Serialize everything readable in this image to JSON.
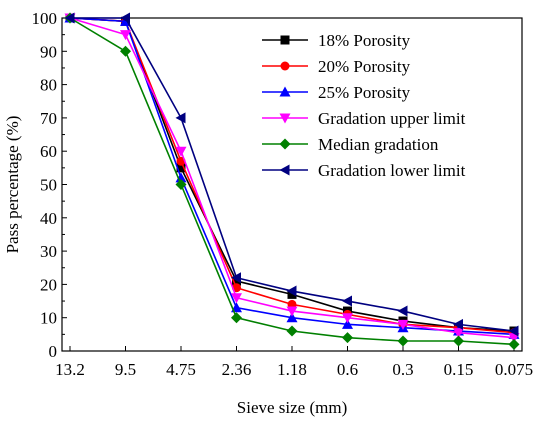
{
  "chart_data": {
    "type": "line",
    "xlabel": "Sieve size (mm)",
    "ylabel": "Pass percentage (%)",
    "categories": [
      "13.2",
      "9.5",
      "4.75",
      "2.36",
      "1.18",
      "0.6",
      "0.3",
      "0.15",
      "0.075"
    ],
    "ylim": [
      0,
      100
    ],
    "yticks": [
      0,
      10,
      20,
      30,
      40,
      50,
      60,
      70,
      80,
      90,
      100
    ],
    "grid": false,
    "legend_position": "top-right",
    "series": [
      {
        "name": "18% Porosity",
        "color": "#000000",
        "marker": "square",
        "values": [
          100,
          99,
          55,
          21,
          17,
          12,
          9,
          7,
          6
        ]
      },
      {
        "name": "20% Porosity",
        "color": "#ff0000",
        "marker": "circle",
        "values": [
          100,
          99,
          57,
          19,
          14,
          11,
          8,
          7,
          5.5
        ]
      },
      {
        "name": "25% Porosity",
        "color": "#0000ff",
        "marker": "triangle-up",
        "values": [
          100,
          99,
          52,
          13,
          10,
          8,
          7,
          6,
          5
        ]
      },
      {
        "name": "Gradation upper limit",
        "color": "#ff00ff",
        "marker": "triangle-down",
        "values": [
          100,
          95,
          60,
          16,
          12,
          10,
          8,
          5.5,
          4
        ]
      },
      {
        "name": "Median gradation",
        "color": "#008000",
        "marker": "diamond",
        "values": [
          100,
          90,
          50,
          10,
          6,
          4,
          3,
          3,
          2
        ]
      },
      {
        "name": "Gradation lower limit",
        "color": "#000080",
        "marker": "triangle-left",
        "values": [
          100,
          100,
          70,
          22,
          18,
          15,
          12,
          8,
          6
        ]
      }
    ]
  }
}
